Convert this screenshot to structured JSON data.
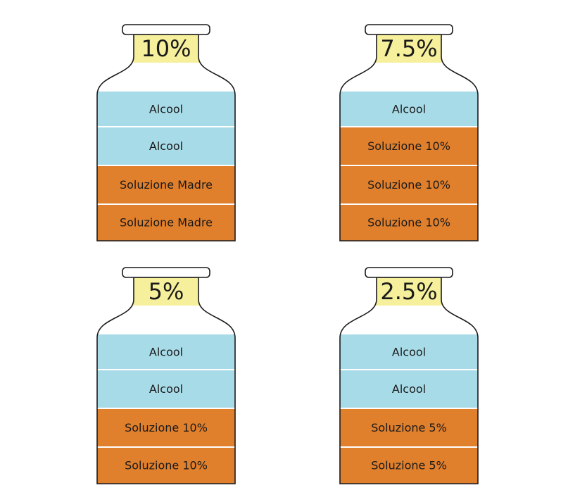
{
  "bottles": [
    {
      "label": "10%",
      "layers": [
        {
          "text": "Alcool",
          "color": "#a8dbe8"
        },
        {
          "text": "Alcool",
          "color": "#a8dbe8"
        },
        {
          "text": "Soluzione Madre",
          "color": "#e07f2c"
        },
        {
          "text": "Soluzione Madre",
          "color": "#e07f2c"
        }
      ]
    },
    {
      "label": "7.5%",
      "layers": [
        {
          "text": "Alcool",
          "color": "#a8dbe8"
        },
        {
          "text": "Soluzione 10%",
          "color": "#e07f2c"
        },
        {
          "text": "Soluzione 10%",
          "color": "#e07f2c"
        },
        {
          "text": "Soluzione 10%",
          "color": "#e07f2c"
        }
      ]
    },
    {
      "label": "5%",
      "layers": [
        {
          "text": "Alcool",
          "color": "#a8dbe8"
        },
        {
          "text": "Alcool",
          "color": "#a8dbe8"
        },
        {
          "text": "Soluzione 10%",
          "color": "#e07f2c"
        },
        {
          "text": "Soluzione 10%",
          "color": "#e07f2c"
        }
      ]
    },
    {
      "label": "2.5%",
      "layers": [
        {
          "text": "Alcool",
          "color": "#a8dbe8"
        },
        {
          "text": "Alcool",
          "color": "#a8dbe8"
        },
        {
          "text": "Soluzione 5%",
          "color": "#e07f2c"
        },
        {
          "text": "Soluzione 5%",
          "color": "#e07f2c"
        }
      ]
    }
  ]
}
